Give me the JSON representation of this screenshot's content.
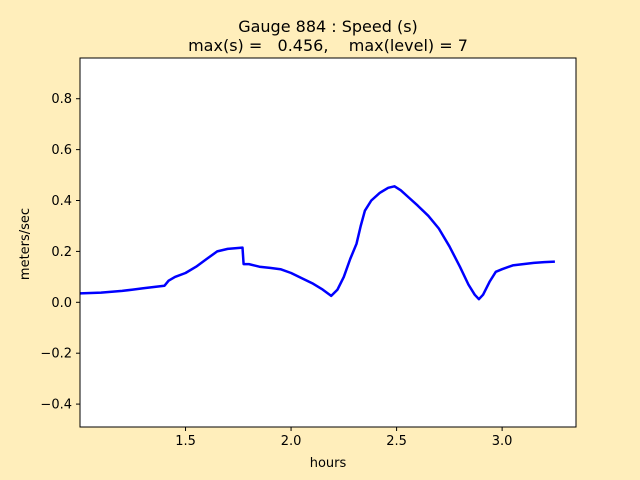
{
  "figure": {
    "background": "#ffeebb",
    "plot_background": "#ffffff"
  },
  "chart_data": {
    "type": "line",
    "title_line1": "Gauge 884 : Speed (s)",
    "title_line2": "max(s) =   0.456,    max(level) = 7",
    "xlabel": "hours",
    "ylabel": "meters/sec",
    "xlim": [
      1.0,
      3.35
    ],
    "ylim": [
      -0.49,
      0.96
    ],
    "xticks": [
      1.5,
      2.0,
      2.5,
      3.0
    ],
    "xtick_labels": [
      "1.5",
      "2.0",
      "2.5",
      "3.0"
    ],
    "yticks": [
      -0.4,
      -0.2,
      0.0,
      0.2,
      0.4,
      0.6,
      0.8
    ],
    "ytick_labels": [
      "−0.4",
      "−0.2",
      "0.0",
      "0.2",
      "0.4",
      "0.6",
      "0.8"
    ],
    "grid": false,
    "series": [
      {
        "color": "#0000ff",
        "x": [
          1.0,
          1.1,
          1.2,
          1.25,
          1.3,
          1.4,
          1.42,
          1.45,
          1.5,
          1.55,
          1.6,
          1.65,
          1.7,
          1.77,
          1.775,
          1.8,
          1.85,
          1.9,
          1.95,
          2.0,
          2.05,
          2.1,
          2.15,
          2.19,
          2.22,
          2.25,
          2.28,
          2.31,
          2.33,
          2.35,
          2.38,
          2.42,
          2.46,
          2.49,
          2.52,
          2.56,
          2.6,
          2.65,
          2.7,
          2.75,
          2.8,
          2.84,
          2.87,
          2.89,
          2.91,
          2.94,
          2.97,
          3.0,
          3.05,
          3.1,
          3.15,
          3.2,
          3.25
        ],
        "y": [
          0.035,
          0.038,
          0.045,
          0.05,
          0.055,
          0.065,
          0.085,
          0.1,
          0.115,
          0.14,
          0.17,
          0.2,
          0.21,
          0.215,
          0.15,
          0.15,
          0.14,
          0.135,
          0.13,
          0.115,
          0.095,
          0.075,
          0.05,
          0.025,
          0.05,
          0.1,
          0.17,
          0.23,
          0.3,
          0.36,
          0.4,
          0.43,
          0.45,
          0.456,
          0.44,
          0.41,
          0.38,
          0.34,
          0.29,
          0.22,
          0.14,
          0.07,
          0.03,
          0.012,
          0.03,
          0.08,
          0.12,
          0.13,
          0.145,
          0.15,
          0.155,
          0.158,
          0.16
        ]
      }
    ]
  }
}
